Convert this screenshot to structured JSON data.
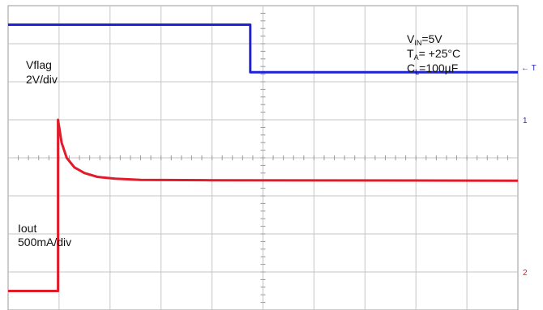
{
  "chart_data": {
    "type": "line",
    "grid": true,
    "x_divisions": 10,
    "y_divisions": 8,
    "series": [
      {
        "name": "Vflag",
        "color": "#1f22d6",
        "points": [
          [
            0,
            7.5
          ],
          [
            4.75,
            7.5
          ],
          [
            4.75,
            6.25
          ],
          [
            10,
            6.25
          ]
        ]
      },
      {
        "name": "Iout",
        "color": "#e01b2a",
        "points": [
          [
            0,
            0.5
          ],
          [
            0.98,
            0.5
          ],
          [
            0.98,
            5.0
          ],
          [
            1.05,
            4.4
          ],
          [
            1.15,
            4.0
          ],
          [
            1.3,
            3.75
          ],
          [
            1.5,
            3.6
          ],
          [
            1.75,
            3.5
          ],
          [
            2.1,
            3.45
          ],
          [
            2.6,
            3.42
          ],
          [
            4,
            3.41
          ],
          [
            10,
            3.4
          ]
        ]
      }
    ],
    "labels": {
      "vflag_name": "Vflag",
      "vflag_scale": "2V/div",
      "iout_name": "Iout",
      "iout_scale": "500mA/div"
    },
    "conditions": {
      "vin_main": "V",
      "vin_sub": "IN",
      "vin_val": "=5V",
      "ta_main": "T",
      "ta_sub": "A",
      "ta_val": "= +25°C",
      "cl_main": "C",
      "cl_sub": "L",
      "cl_val": "=100µF"
    },
    "markers": {
      "trigger": "← T",
      "ch1": "1",
      "ch2": "2"
    }
  }
}
